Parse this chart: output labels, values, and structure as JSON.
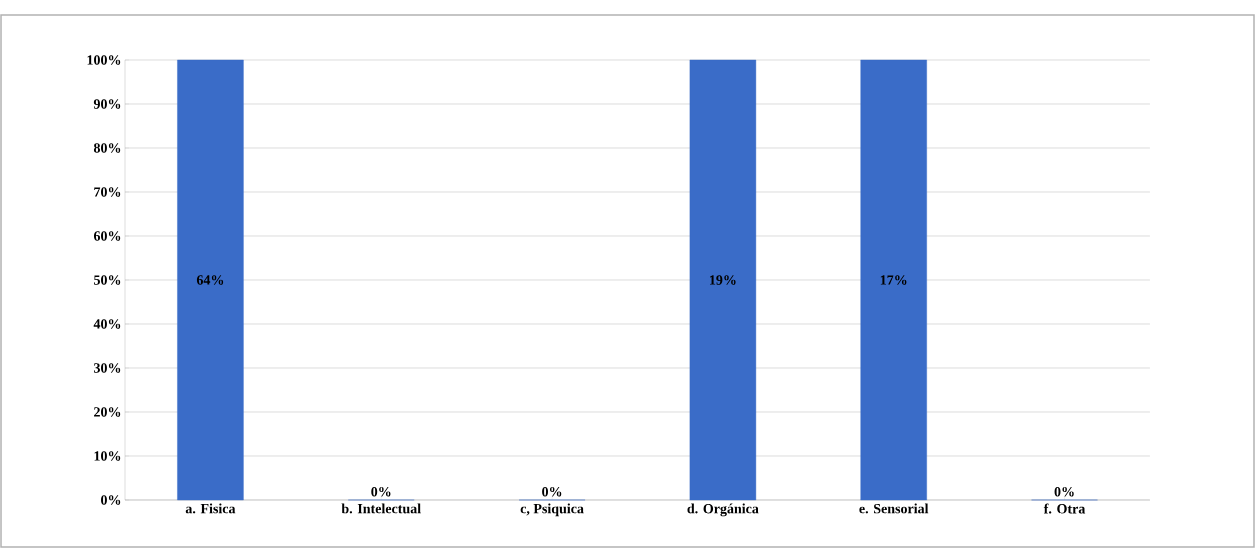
{
  "chart_data": {
    "type": "bar",
    "categories": [
      "a. Fisica",
      "b. Intelectual",
      "c, Psiquica",
      "d. Orgánica",
      "e. Sensorial",
      "f. Otra"
    ],
    "values": [
      100,
      0,
      0,
      100,
      100,
      0
    ],
    "annotations": [
      "64%",
      "0%",
      "0%",
      "19%",
      "17%",
      "0%"
    ],
    "color": "#3a6cc8",
    "ylim": [
      0,
      100
    ],
    "yticks": [
      {
        "value": 0,
        "label": "0%"
      },
      {
        "value": 10,
        "label": "10%"
      },
      {
        "value": 20,
        "label": "20%"
      },
      {
        "value": 30,
        "label": "30%"
      },
      {
        "value": 40,
        "label": "40%"
      },
      {
        "value": 50,
        "label": "50%"
      },
      {
        "value": 60,
        "label": "60%"
      },
      {
        "value": 70,
        "label": "70%"
      },
      {
        "value": 80,
        "label": "80%"
      },
      {
        "value": 90,
        "label": "90%"
      },
      {
        "value": 100,
        "label": "100%"
      }
    ],
    "grid": "y"
  }
}
